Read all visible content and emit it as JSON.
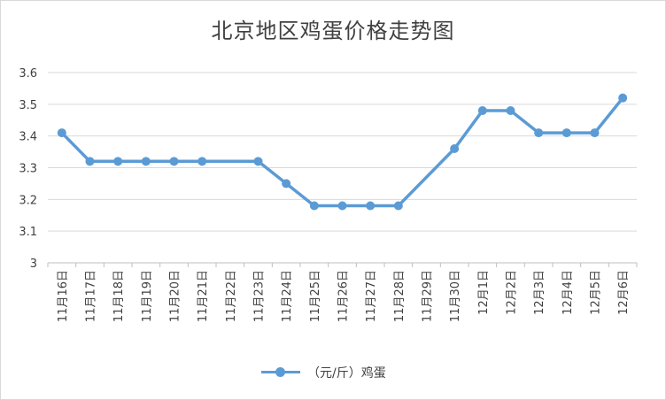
{
  "chart_data": {
    "type": "line",
    "title": "北京地区鸡蛋价格走势图",
    "categories": [
      "11月16日",
      "11月17日",
      "11月18日",
      "11月19日",
      "11月20日",
      "11月21日",
      "11月22日",
      "11月23日",
      "11月24日",
      "11月25日",
      "11月26日",
      "11月27日",
      "11月28日",
      "11月29日",
      "11月30日",
      "12月1日",
      "12月2日",
      "12月3日",
      "12月4日",
      "12月5日",
      "12月6日"
    ],
    "series": [
      {
        "name": "（元/斤）鸡蛋",
        "values": [
          3.41,
          3.32,
          3.32,
          3.32,
          3.32,
          3.32,
          null,
          3.32,
          3.25,
          3.18,
          3.18,
          3.18,
          3.18,
          null,
          3.36,
          3.48,
          3.48,
          3.41,
          3.41,
          3.41,
          3.52
        ],
        "color": "#5b9bd5"
      }
    ],
    "yticks": [
      "3",
      "3.1",
      "3.2",
      "3.3",
      "3.4",
      "3.5",
      "3.6"
    ],
    "ylim": [
      3,
      3.6
    ],
    "grid": true,
    "legend_position": "bottom"
  }
}
